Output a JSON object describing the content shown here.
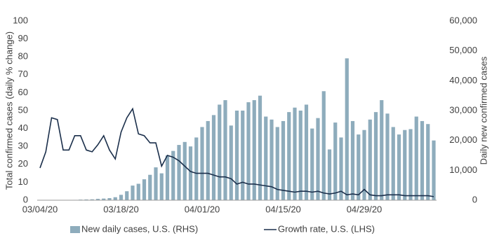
{
  "chart_data": {
    "type": "bar-line",
    "y_label": "Total confirmed cases (daily % change)",
    "y2_label": "Daily new confirmed cases",
    "categories": [
      "03/04/20",
      null,
      null,
      null,
      null,
      null,
      null,
      null,
      null,
      null,
      null,
      null,
      null,
      null,
      "03/18/20",
      null,
      null,
      null,
      null,
      null,
      null,
      null,
      null,
      null,
      null,
      null,
      null,
      null,
      "04/01/20",
      null,
      null,
      null,
      null,
      null,
      null,
      null,
      null,
      null,
      null,
      null,
      null,
      null,
      "04/15/20",
      null,
      null,
      null,
      null,
      null,
      null,
      null,
      null,
      null,
      null,
      null,
      null,
      null,
      "04/29/20",
      null,
      null,
      null,
      null,
      null,
      null,
      null,
      null,
      null,
      null,
      null,
      null
    ],
    "series": [
      {
        "name": "New daily cases, U.S. (RHS)",
        "color": "#8eacbc",
        "axis": "y2",
        "kind": "bar",
        "values": [
          20,
          30,
          50,
          60,
          80,
          100,
          120,
          200,
          250,
          300,
          450,
          550,
          700,
          1000,
          1800,
          3000,
          4900,
          5500,
          7000,
          8500,
          11000,
          9000,
          15000,
          16500,
          18500,
          19500,
          18000,
          21000,
          24500,
          26500,
          28500,
          32000,
          33500,
          25000,
          30000,
          30000,
          32800,
          33500,
          35000,
          28000,
          27000,
          24500,
          26500,
          29500,
          31000,
          30000,
          32000,
          24000,
          27500,
          36500,
          17000,
          26000,
          21000,
          47500,
          26500,
          22000,
          23500,
          27000,
          29500,
          33500,
          29000,
          24500,
          22000,
          23500,
          23800,
          28000,
          26500,
          25500,
          20000
        ]
      },
      {
        "name": "Growth rate, U.S. (LHS)",
        "color": "#1b2f4b",
        "kind": "line",
        "values": [
          18,
          27,
          46,
          45,
          28,
          28,
          36,
          36,
          28,
          27,
          31,
          36,
          28,
          23,
          38,
          46,
          51,
          37,
          36,
          32,
          32,
          19,
          25,
          24,
          22,
          19,
          16,
          15,
          15,
          15,
          14,
          13,
          13,
          12,
          9,
          10,
          9,
          9,
          8.5,
          8,
          7.5,
          6,
          5.5,
          5,
          4.5,
          5,
          5,
          4.5,
          5,
          4,
          3.5,
          4,
          5,
          3,
          3.5,
          3,
          6,
          3,
          2.5,
          2.5,
          3,
          3,
          3,
          2.5,
          2.5,
          2.5,
          2.5,
          2.5,
          2
        ]
      }
    ],
    "ylim": [
      0,
      100
    ],
    "yticks": [
      0,
      10,
      20,
      30,
      40,
      50,
      60,
      70,
      80,
      90,
      100
    ],
    "y2lim": [
      0,
      60000
    ],
    "y2ticks": [
      0,
      {
        "value": 10000,
        "label": "10,000"
      },
      {
        "value": 20000,
        "label": "20,000"
      },
      {
        "value": 30000,
        "label": "30,000"
      },
      {
        "value": 40000,
        "label": "40,000"
      },
      {
        "value": 50000,
        "label": "50,000"
      },
      {
        "value": 60000,
        "label": "60,000"
      }
    ],
    "legend": "bottom",
    "grid": false
  }
}
